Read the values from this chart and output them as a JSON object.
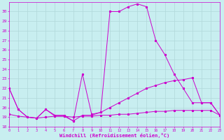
{
  "xlabel": "Windchill (Refroidissement éolien,°C)",
  "xlim": [
    0,
    23
  ],
  "ylim": [
    18,
    31
  ],
  "yticks": [
    18,
    19,
    20,
    21,
    22,
    23,
    24,
    25,
    26,
    27,
    28,
    29,
    30
  ],
  "xticks": [
    0,
    1,
    2,
    3,
    4,
    5,
    6,
    7,
    8,
    9,
    10,
    11,
    12,
    13,
    14,
    15,
    16,
    17,
    18,
    19,
    20,
    21,
    22,
    23
  ],
  "bg_color": "#c8eef0",
  "grid_color": "#b0d8da",
  "line_color": "#cc00cc",
  "line1_x": [
    0,
    1,
    2,
    3,
    4,
    5,
    6,
    7,
    8,
    9,
    10,
    11,
    12,
    13,
    14,
    15,
    16,
    17,
    18,
    19,
    20,
    21,
    22,
    23
  ],
  "line1_y": [
    19.3,
    19.1,
    19.0,
    18.9,
    19.0,
    19.1,
    19.1,
    19.0,
    19.1,
    19.1,
    19.2,
    19.2,
    19.3,
    19.3,
    19.4,
    19.5,
    19.6,
    19.6,
    19.7,
    19.7,
    19.7,
    19.7,
    19.7,
    19.2
  ],
  "line2_x": [
    0,
    1,
    2,
    3,
    4,
    5,
    6,
    7,
    8,
    9,
    10,
    11,
    12,
    13,
    14,
    15,
    16,
    17,
    18,
    19,
    20,
    21,
    22,
    23
  ],
  "line2_y": [
    22.0,
    19.8,
    19.0,
    18.9,
    19.8,
    19.1,
    19.1,
    18.6,
    19.2,
    19.2,
    19.5,
    20.0,
    20.5,
    21.0,
    21.5,
    22.0,
    22.3,
    22.6,
    22.8,
    22.9,
    23.1,
    20.5,
    20.5,
    19.2
  ],
  "line3_x": [
    0,
    1,
    2,
    3,
    4,
    5,
    6,
    7,
    8,
    9,
    10,
    11,
    12,
    13,
    14,
    15,
    16,
    17,
    18,
    19,
    20,
    21,
    22,
    23
  ],
  "line3_y": [
    22.0,
    19.8,
    19.0,
    18.9,
    19.8,
    19.2,
    19.2,
    18.6,
    23.5,
    19.3,
    19.5,
    30.0,
    30.0,
    30.5,
    30.8,
    30.5,
    27.0,
    25.5,
    23.5,
    22.0,
    20.5,
    20.5,
    20.5,
    19.2
  ]
}
